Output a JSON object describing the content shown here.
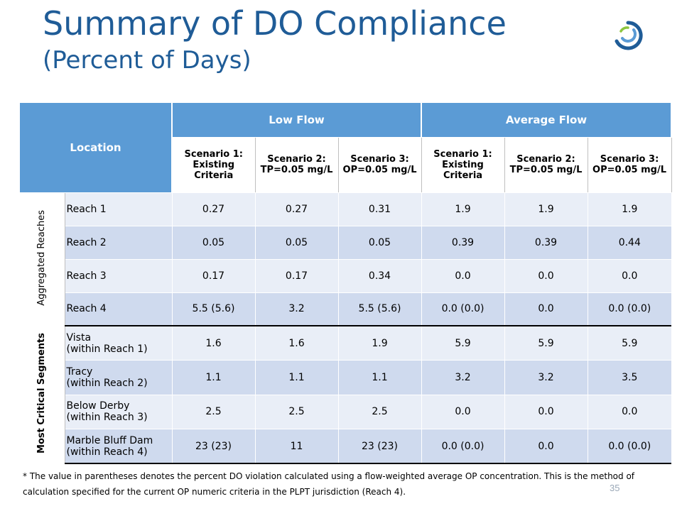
{
  "title": {
    "main": "Summary of DO Compliance",
    "sub": "(Percent of Days)"
  },
  "logo": {
    "icon": "circular-swoosh-logo-icon",
    "colors": [
      "#1f5c97",
      "#5b9bd5",
      "#8dc63f"
    ]
  },
  "table": {
    "location_header": "Location",
    "flow_headers": [
      "Low Flow",
      "Average Flow"
    ],
    "scenarios": [
      {
        "name": "Scenario 1:",
        "desc": "Existing Criteria"
      },
      {
        "name": "Scenario 2:",
        "desc": "TP=0.05 mg/L"
      },
      {
        "name": "Scenario 3:",
        "desc": "OP=0.05 mg/L"
      },
      {
        "name": "Scenario 1:",
        "desc": "Existing Criteria"
      },
      {
        "name": "Scenario 2:",
        "desc": "TP=0.05 mg/L"
      },
      {
        "name": "Scenario 3:",
        "desc": "OP=0.05 mg/L"
      }
    ],
    "groups": [
      {
        "label": "Aggregated Reaches",
        "rows": [
          {
            "name": [
              "Reach 1"
            ],
            "values": [
              "0.27",
              "0.27",
              "0.31",
              "1.9",
              "1.9",
              "1.9"
            ]
          },
          {
            "name": [
              "Reach 2"
            ],
            "values": [
              "0.05",
              "0.05",
              "0.05",
              "0.39",
              "0.39",
              "0.44"
            ]
          },
          {
            "name": [
              "Reach 3"
            ],
            "values": [
              "0.17",
              "0.17",
              "0.34",
              "0.0",
              "0.0",
              "0.0"
            ]
          },
          {
            "name": [
              "Reach 4"
            ],
            "values": [
              "5.5 (5.6)",
              "3.2",
              "5.5 (5.6)",
              "0.0 (0.0)",
              "0.0",
              "0.0 (0.0)"
            ]
          }
        ]
      },
      {
        "label": "Most Critical Segments",
        "rows": [
          {
            "name": [
              "Vista",
              "(within Reach 1)"
            ],
            "values": [
              "1.6",
              "1.6",
              "1.9",
              "5.9",
              "5.9",
              "5.9"
            ]
          },
          {
            "name": [
              "Tracy",
              "(within Reach 2)"
            ],
            "values": [
              "1.1",
              "1.1",
              "1.1",
              "3.2",
              "3.2",
              "3.5"
            ]
          },
          {
            "name": [
              "Below Derby",
              "(within Reach 3)"
            ],
            "values": [
              "2.5",
              "2.5",
              "2.5",
              "0.0",
              "0.0",
              "0.0"
            ]
          },
          {
            "name": [
              "Marble Bluff Dam",
              "(within Reach 4)"
            ],
            "values": [
              "23 (23)",
              "11",
              "23 (23)",
              "0.0 (0.0)",
              "0.0",
              "0.0 (0.0)"
            ]
          }
        ]
      }
    ]
  },
  "footnote": "* The value in parentheses denotes the percent DO violation calculated using a flow-weighted average OP concentration. This is the method of calculation specified for the current OP numeric criteria in the PLPT jurisdiction (Reach 4).",
  "page_number": "35"
}
